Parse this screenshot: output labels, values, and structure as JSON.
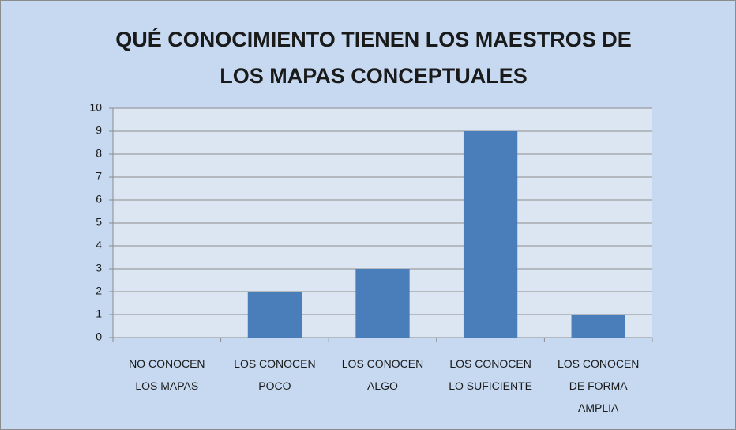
{
  "chart_data": {
    "type": "bar",
    "title": "QUÉ CONOCIMIENTO TIENEN LOS MAESTROS DE LOS MAPAS CONCEPTUALES",
    "categories": [
      "NO CONOCEN LOS MAPAS",
      "LOS CONOCEN POCO",
      "LOS CONOCEN ALGO",
      "LOS CONOCEN LO SUFICIENTE",
      "LOS CONOCEN DE FORMA AMPLIA"
    ],
    "values": [
      0,
      2,
      3,
      9,
      1
    ],
    "color": "#4a7ebb",
    "ylim": [
      0,
      10
    ],
    "yticks": [
      0,
      1,
      2,
      3,
      4,
      5,
      6,
      7,
      8,
      9,
      10
    ],
    "grid": true
  }
}
